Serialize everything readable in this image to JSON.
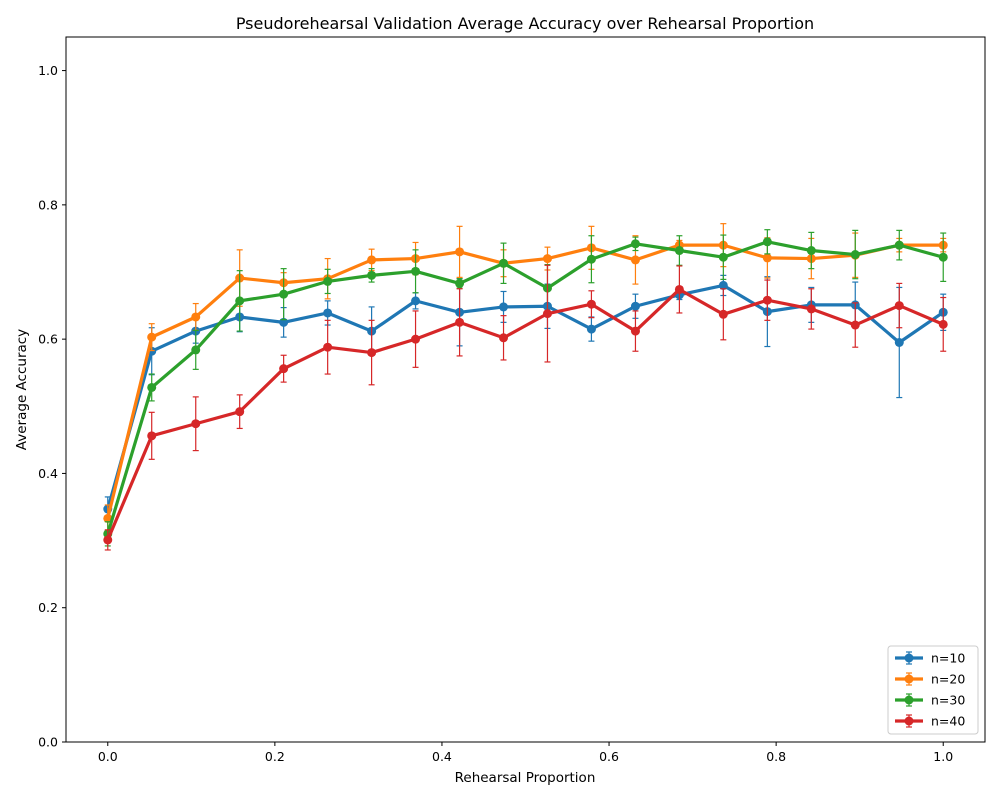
{
  "chart_data": {
    "type": "line",
    "title": "Pseudorehearsal Validation Average Accuracy over Rehearsal Proportion",
    "xlabel": "Rehearsal Proportion",
    "ylabel": "Average Accuracy",
    "xlim": [
      -0.05,
      1.05
    ],
    "ylim": [
      0.0,
      1.05
    ],
    "xticks": [
      0.0,
      0.2,
      0.4,
      0.6,
      0.8,
      1.0
    ],
    "xtick_labels": [
      "0.0",
      "0.2",
      "0.4",
      "0.6",
      "0.8",
      "1.0"
    ],
    "yticks": [
      0.0,
      0.2,
      0.4,
      0.6,
      0.8,
      1.0
    ],
    "ytick_labels": [
      "0.0",
      "0.2",
      "0.4",
      "0.6",
      "0.8",
      "1.0"
    ],
    "grid": false,
    "legend_position": "lower right",
    "error_bars": true,
    "x": [
      0.0,
      0.0526,
      0.1053,
      0.1579,
      0.2105,
      0.2632,
      0.3158,
      0.3684,
      0.4211,
      0.4737,
      0.5263,
      0.5789,
      0.6316,
      0.6842,
      0.7368,
      0.7895,
      0.8421,
      0.8947,
      0.9474,
      1.0
    ],
    "series": [
      {
        "name": "n=10",
        "color": "#1f77b4",
        "values": [
          0.347,
          0.582,
          0.612,
          0.633,
          0.625,
          0.639,
          0.612,
          0.657,
          0.64,
          0.648,
          0.649,
          0.615,
          0.649,
          0.666,
          0.68,
          0.641,
          0.651,
          0.651,
          0.595,
          0.64
        ],
        "errors": [
          0.018,
          0.035,
          0.018,
          0.022,
          0.022,
          0.018,
          0.036,
          0.012,
          0.05,
          0.023,
          0.033,
          0.018,
          0.018,
          0.007,
          0.015,
          0.052,
          0.026,
          0.034,
          0.082,
          0.027
        ]
      },
      {
        "name": "n=20",
        "color": "#ff7f0e",
        "values": [
          0.333,
          0.603,
          0.633,
          0.691,
          0.684,
          0.69,
          0.718,
          0.72,
          0.73,
          0.713,
          0.72,
          0.736,
          0.718,
          0.74,
          0.74,
          0.721,
          0.72,
          0.725,
          0.74,
          0.74
        ],
        "errors": [
          0.02,
          0.02,
          0.02,
          0.042,
          0.015,
          0.03,
          0.016,
          0.024,
          0.038,
          0.02,
          0.017,
          0.032,
          0.036,
          0.007,
          0.032,
          0.03,
          0.03,
          0.033,
          0.01,
          0.01
        ]
      },
      {
        "name": "n=30",
        "color": "#2ca02c",
        "values": [
          0.31,
          0.528,
          0.584,
          0.657,
          0.667,
          0.686,
          0.695,
          0.701,
          0.683,
          0.713,
          0.676,
          0.719,
          0.742,
          0.732,
          0.722,
          0.745,
          0.732,
          0.726,
          0.74,
          0.722
        ],
        "errors": [
          0.018,
          0.02,
          0.029,
          0.045,
          0.038,
          0.018,
          0.01,
          0.032,
          0.007,
          0.03,
          0.035,
          0.035,
          0.01,
          0.022,
          0.033,
          0.018,
          0.027,
          0.036,
          0.022,
          0.036
        ]
      },
      {
        "name": "n=40",
        "color": "#d62728",
        "values": [
          0.301,
          0.456,
          0.474,
          0.492,
          0.556,
          0.588,
          0.58,
          0.6,
          0.625,
          0.602,
          0.638,
          0.652,
          0.612,
          0.674,
          0.637,
          0.658,
          0.645,
          0.621,
          0.65,
          0.622
        ],
        "errors": [
          0.015,
          0.035,
          0.04,
          0.025,
          0.02,
          0.04,
          0.048,
          0.042,
          0.05,
          0.033,
          0.072,
          0.02,
          0.03,
          0.035,
          0.038,
          0.03,
          0.03,
          0.033,
          0.033,
          0.04
        ]
      }
    ]
  }
}
